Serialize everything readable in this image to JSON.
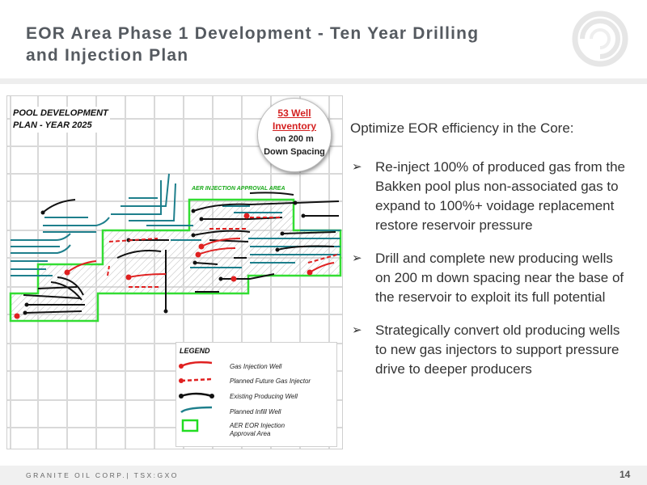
{
  "header": {
    "title_line1": "EOR Area Phase 1 Development - Ten Year Drilling",
    "title_line2": "and Injection Plan"
  },
  "map": {
    "plan_label_line1": "POOL DEVELOPMENT",
    "plan_label_line2": "PLAN - YEAR 2025",
    "inventory": {
      "line1": "53 Well",
      "line2": "Inventory",
      "line3": "on 200 m",
      "line4": "Down Spacing"
    },
    "aer_label": "AER INJECTION APPROVAL AREA",
    "legend": {
      "title": "LEGEND",
      "items": [
        {
          "label": "Gas Injection Well",
          "color": "#e02020"
        },
        {
          "label": "Planned Future Gas Injector",
          "color": "#e02020"
        },
        {
          "label": "Existing Producing Well",
          "color": "#111111"
        },
        {
          "label": "Planned Infill Well",
          "color": "#1e7f8c"
        },
        {
          "label": "AER EOR Injection",
          "label2": "Approval Area",
          "color": "#22dd22"
        }
      ]
    }
  },
  "content": {
    "intro": "Optimize EOR efficiency in the Core:",
    "bullets": [
      "Re-inject 100% of produced gas from the Bakken pool plus non-associated gas to expand to 100%+ voidage replacement restore reservoir pressure",
      "Drill and complete new producing wells on 200 m down spacing near the base of the reservoir to exploit its full potential",
      "Strategically convert old producing wells to new gas injectors to support pressure drive to deeper producers"
    ]
  },
  "footer": {
    "company": "GRANITE OIL CORP.| TSX:GXO",
    "page": "14"
  }
}
